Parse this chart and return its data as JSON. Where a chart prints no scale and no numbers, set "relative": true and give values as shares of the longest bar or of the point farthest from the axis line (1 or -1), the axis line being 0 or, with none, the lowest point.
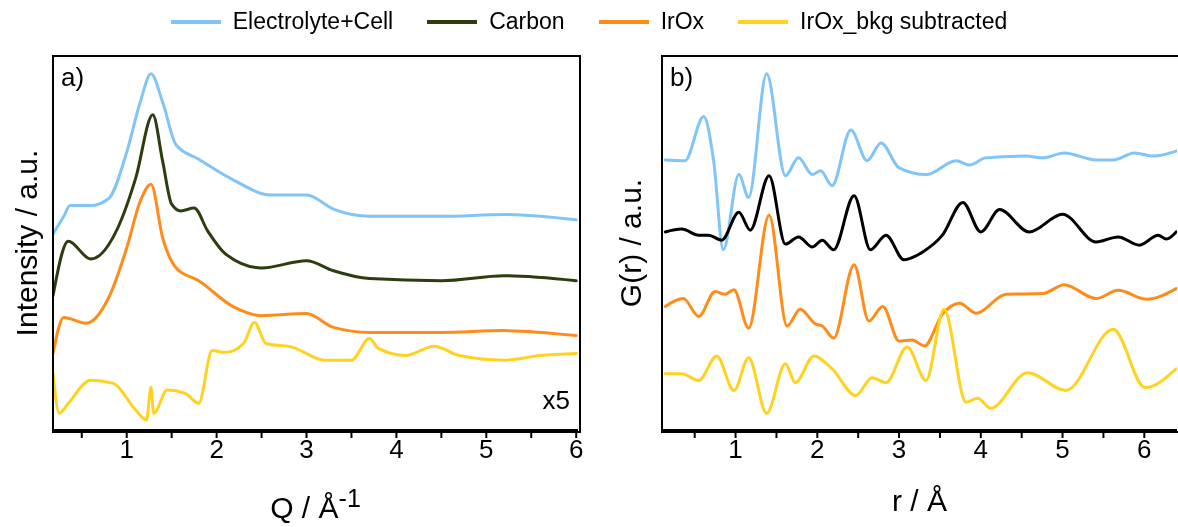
{
  "chart_data": [
    {
      "type": "line",
      "relative": true,
      "legend": "top",
      "xlabel": "Q / Å$^{-1}$",
      "ylabel": "Intensity / a.u.",
      "annotations": [
        "a)",
        "x5"
      ],
      "xlim": [
        0.18,
        6.02
      ],
      "xticks": [
        {
          "value": 0.5,
          "label": null
        },
        1,
        {
          "value": 1.5,
          "label": null
        },
        2,
        {
          "value": 2.5,
          "label": null
        },
        3,
        {
          "value": 3.5,
          "label": null
        },
        4,
        {
          "value": 4.5,
          "label": null
        },
        5,
        {
          "value": 5.5,
          "label": null
        },
        6
      ],
      "series": [
        {
          "name": "Electrolyte+Cell",
          "color": "#80c4f8",
          "x": [
            0.18,
            0.3,
            0.37,
            0.6,
            0.8,
            1.0,
            1.15,
            1.27,
            1.4,
            1.55,
            1.8,
            2.2,
            2.6,
            3.0,
            3.3,
            3.7,
            4.5,
            5.2,
            6.0
          ],
          "values": [
            0.55,
            0.6,
            0.63,
            0.63,
            0.65,
            0.78,
            0.92,
            1.0,
            0.92,
            0.8,
            0.76,
            0.7,
            0.66,
            0.66,
            0.62,
            0.6,
            0.6,
            0.605,
            0.59
          ]
        },
        {
          "name": "Carbon",
          "color": "#2d3d10",
          "x": [
            0.18,
            0.35,
            0.6,
            0.9,
            1.1,
            1.29,
            1.4,
            1.5,
            1.6,
            1.75,
            1.9,
            2.1,
            2.5,
            3.0,
            3.3,
            3.7,
            4.5,
            5.2,
            6.0
          ],
          "values": [
            0.377,
            0.53,
            0.48,
            0.567,
            0.707,
            0.885,
            0.754,
            0.634,
            0.615,
            0.623,
            0.559,
            0.494,
            0.455,
            0.475,
            0.447,
            0.425,
            0.419,
            0.433,
            0.419
          ]
        },
        {
          "name": "IrOx",
          "color": "#ff8c1a",
          "x": [
            0.18,
            0.3,
            0.55,
            0.8,
            1.0,
            1.15,
            1.27,
            1.4,
            1.55,
            1.8,
            2.2,
            2.5,
            3.0,
            3.3,
            3.7,
            4.5,
            5.2,
            6.0
          ],
          "values": [
            0.215,
            0.316,
            0.3,
            0.372,
            0.511,
            0.642,
            0.69,
            0.539,
            0.455,
            0.419,
            0.344,
            0.321,
            0.327,
            0.288,
            0.274,
            0.274,
            0.279,
            0.265
          ]
        },
        {
          "name": "IrOx_bkg subtracted",
          "color": "#ffd21f",
          "x": [
            0.18,
            0.25,
            0.35,
            0.6,
            0.85,
            1.1,
            1.22,
            1.27,
            1.3,
            1.45,
            1.65,
            1.8,
            1.95,
            2.1,
            2.3,
            2.42,
            2.55,
            2.85,
            3.2,
            3.5,
            3.7,
            3.8,
            4.1,
            4.42,
            4.7,
            5.2,
            5.6,
            6.0
          ],
          "values": [
            0.159,
            0.047,
            0.075,
            0.14,
            0.131,
            0.056,
            0.028,
            0.12,
            0.047,
            0.112,
            0.103,
            0.075,
            0.223,
            0.218,
            0.243,
            0.302,
            0.243,
            0.232,
            0.196,
            0.196,
            0.257,
            0.229,
            0.209,
            0.235,
            0.209,
            0.196,
            0.209,
            0.215
          ]
        }
      ]
    },
    {
      "type": "line",
      "relative": true,
      "xlabel": "r / Å",
      "ylabel": "G(r) / a.u.",
      "annotations": [
        "b)"
      ],
      "xlim": [
        0.1,
        6.4
      ],
      "xticks": [
        {
          "value": 0.5,
          "label": null
        },
        1,
        {
          "value": 1.5,
          "label": null
        },
        2,
        {
          "value": 2.5,
          "label": null
        },
        3,
        {
          "value": 3.5,
          "label": null
        },
        4,
        {
          "value": 4.5,
          "label": null
        },
        5,
        {
          "value": 5.5,
          "label": null
        },
        6
      ],
      "series": [
        {
          "color": "#80c4f8",
          "x": [
            0.14,
            0.38,
            0.61,
            0.73,
            0.85,
            1.04,
            1.16,
            1.38,
            1.61,
            1.77,
            1.94,
            2.04,
            2.18,
            2.41,
            2.61,
            2.78,
            3.0,
            3.33,
            3.7,
            3.86,
            4.06,
            4.55,
            4.76,
            5.02,
            5.41,
            5.62,
            5.88,
            6.11,
            6.39
          ],
          "values": [
            0.758,
            0.756,
            0.88,
            0.758,
            0.506,
            0.717,
            0.653,
            1.0,
            0.714,
            0.764,
            0.717,
            0.728,
            0.686,
            0.842,
            0.756,
            0.806,
            0.736,
            0.717,
            0.756,
            0.744,
            0.764,
            0.769,
            0.764,
            0.778,
            0.758,
            0.758,
            0.778,
            0.769,
            0.783
          ]
        },
        {
          "color": "#000000",
          "x": [
            0.14,
            0.34,
            0.55,
            0.67,
            0.83,
            1.04,
            1.18,
            1.41,
            1.61,
            1.77,
            1.94,
            2.06,
            2.2,
            2.45,
            2.65,
            2.84,
            3.06,
            3.29,
            3.53,
            3.78,
            4.0,
            4.23,
            4.59,
            5.0,
            5.41,
            5.68,
            5.94,
            6.17,
            6.27,
            6.39
          ],
          "values": [
            0.556,
            0.564,
            0.547,
            0.547,
            0.533,
            0.611,
            0.561,
            0.714,
            0.522,
            0.542,
            0.514,
            0.533,
            0.506,
            0.658,
            0.506,
            0.547,
            0.478,
            0.5,
            0.547,
            0.639,
            0.556,
            0.619,
            0.556,
            0.606,
            0.528,
            0.542,
            0.519,
            0.547,
            0.536,
            0.556
          ]
        },
        {
          "color": "#ff8c1a",
          "x": [
            0.14,
            0.36,
            0.55,
            0.75,
            0.87,
            0.98,
            1.16,
            1.41,
            1.63,
            1.79,
            1.98,
            2.06,
            2.2,
            2.45,
            2.63,
            2.8,
            3.0,
            3.16,
            3.31,
            3.53,
            3.74,
            3.94,
            4.31,
            4.76,
            5.02,
            5.41,
            5.68,
            6.03,
            6.39
          ],
          "values": [
            0.347,
            0.369,
            0.319,
            0.389,
            0.381,
            0.394,
            0.286,
            0.603,
            0.292,
            0.339,
            0.297,
            0.292,
            0.258,
            0.464,
            0.306,
            0.347,
            0.25,
            0.253,
            0.236,
            0.325,
            0.356,
            0.328,
            0.381,
            0.383,
            0.408,
            0.369,
            0.392,
            0.367,
            0.397
          ]
        },
        {
          "color": "#ffd21f",
          "x": [
            0.14,
            0.34,
            0.55,
            0.77,
            0.98,
            1.16,
            1.38,
            1.61,
            1.73,
            1.96,
            2.18,
            2.47,
            2.67,
            2.84,
            3.1,
            3.33,
            3.55,
            3.82,
            3.96,
            4.12,
            4.57,
            5.04,
            5.62,
            6.01,
            6.39
          ],
          "values": [
            0.158,
            0.158,
            0.139,
            0.208,
            0.111,
            0.203,
            0.047,
            0.186,
            0.133,
            0.208,
            0.172,
            0.097,
            0.147,
            0.133,
            0.233,
            0.139,
            0.339,
            0.078,
            0.089,
            0.061,
            0.161,
            0.111,
            0.283,
            0.119,
            0.172
          ]
        }
      ]
    }
  ]
}
